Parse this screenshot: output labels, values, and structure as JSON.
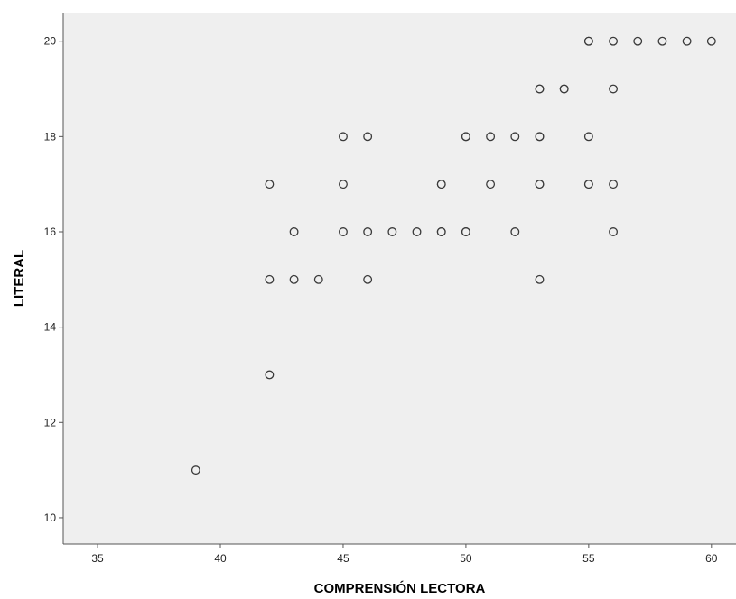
{
  "chart_data": {
    "type": "scatter",
    "title": "",
    "xlabel": "COMPRENSIÓN LECTORA",
    "ylabel": "LITERAL",
    "xlim": [
      33.6,
      61.0
    ],
    "ylim": [
      9.45,
      20.6
    ],
    "xticks": [
      35,
      40,
      45,
      50,
      55,
      60
    ],
    "yticks": [
      10,
      12,
      14,
      16,
      18,
      20
    ],
    "grid": false,
    "legend": "none",
    "colors": {
      "plot_background": "#efefef",
      "marker_stroke": "#3a3a3a",
      "marker_fill": "#efefef",
      "axis": "#555555"
    },
    "points": [
      {
        "x": 39,
        "y": 11
      },
      {
        "x": 42,
        "y": 13
      },
      {
        "x": 42,
        "y": 15
      },
      {
        "x": 43,
        "y": 15
      },
      {
        "x": 44,
        "y": 15
      },
      {
        "x": 46,
        "y": 15
      },
      {
        "x": 53,
        "y": 15
      },
      {
        "x": 43,
        "y": 16
      },
      {
        "x": 45,
        "y": 16
      },
      {
        "x": 46,
        "y": 16
      },
      {
        "x": 47,
        "y": 16
      },
      {
        "x": 48,
        "y": 16
      },
      {
        "x": 49,
        "y": 16
      },
      {
        "x": 49,
        "y": 16
      },
      {
        "x": 50,
        "y": 16
      },
      {
        "x": 50,
        "y": 16
      },
      {
        "x": 52,
        "y": 16
      },
      {
        "x": 56,
        "y": 16
      },
      {
        "x": 42,
        "y": 17
      },
      {
        "x": 45,
        "y": 17
      },
      {
        "x": 49,
        "y": 17
      },
      {
        "x": 49,
        "y": 17
      },
      {
        "x": 51,
        "y": 17
      },
      {
        "x": 53,
        "y": 17
      },
      {
        "x": 53,
        "y": 17
      },
      {
        "x": 55,
        "y": 17
      },
      {
        "x": 55,
        "y": 17
      },
      {
        "x": 56,
        "y": 17
      },
      {
        "x": 45,
        "y": 18
      },
      {
        "x": 46,
        "y": 18
      },
      {
        "x": 50,
        "y": 18
      },
      {
        "x": 50,
        "y": 18
      },
      {
        "x": 51,
        "y": 18
      },
      {
        "x": 52,
        "y": 18
      },
      {
        "x": 53,
        "y": 18
      },
      {
        "x": 53,
        "y": 18
      },
      {
        "x": 55,
        "y": 18
      },
      {
        "x": 53,
        "y": 19
      },
      {
        "x": 53,
        "y": 19
      },
      {
        "x": 54,
        "y": 19
      },
      {
        "x": 54,
        "y": 19
      },
      {
        "x": 56,
        "y": 19
      },
      {
        "x": 55,
        "y": 20
      },
      {
        "x": 55,
        "y": 20
      },
      {
        "x": 56,
        "y": 20
      },
      {
        "x": 57,
        "y": 20
      },
      {
        "x": 58,
        "y": 20
      },
      {
        "x": 59,
        "y": 20
      },
      {
        "x": 60,
        "y": 20
      }
    ]
  }
}
